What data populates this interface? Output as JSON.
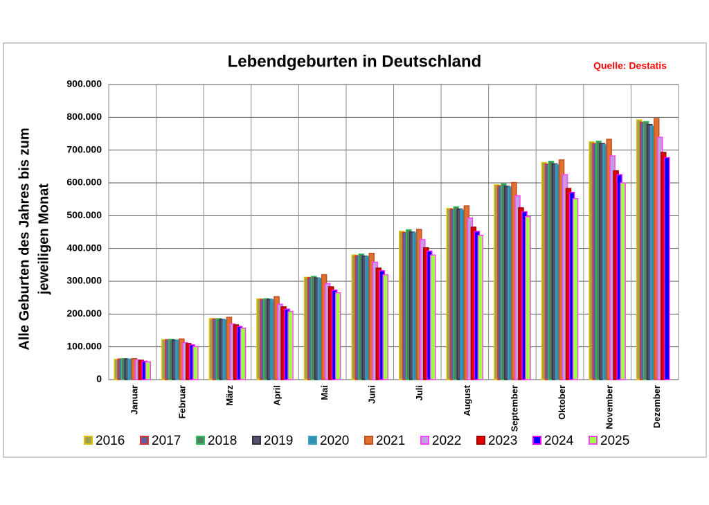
{
  "chart_data": {
    "type": "bar",
    "title": "Lebendgeburten in Deutschland",
    "source": "Quelle: Destatis",
    "ylabel": [
      "Alle Geburten des Jahres bis zum",
      "jeweiligen Monat"
    ],
    "categories": [
      "Januar",
      "Februar",
      "März",
      "April",
      "Mai",
      "Juni",
      "Juli",
      "August",
      "September",
      "Oktober",
      "November",
      "Dezember"
    ],
    "series": [
      {
        "name": "2016",
        "color": "#a0a050",
        "edgecolor": "#e0c000",
        "values": [
          62000,
          122000,
          186000,
          246000,
          312000,
          380000,
          452000,
          522000,
          594000,
          662000,
          725000,
          792000
        ]
      },
      {
        "name": "2017",
        "color": "#6060a0",
        "edgecolor": "#e03030",
        "values": [
          63000,
          122000,
          185000,
          245000,
          311000,
          378000,
          449000,
          520000,
          591000,
          657000,
          720000,
          785000
        ]
      },
      {
        "name": "2018",
        "color": "#508060",
        "edgecolor": "#30c060",
        "values": [
          64000,
          123000,
          186000,
          247000,
          315000,
          383000,
          457000,
          527000,
          597000,
          666000,
          727000,
          787000
        ]
      },
      {
        "name": "2019",
        "color": "#505070",
        "edgecolor": "#303040",
        "values": [
          63000,
          121000,
          184000,
          245000,
          310000,
          377000,
          450000,
          520000,
          590000,
          658000,
          720000,
          778000
        ]
      },
      {
        "name": "2020",
        "color": "#3090b0",
        "edgecolor": "#40a0c0",
        "values": [
          63000,
          121000,
          183000,
          244000,
          309000,
          376000,
          448000,
          518000,
          588000,
          656000,
          716000,
          773000
        ]
      },
      {
        "name": "2021",
        "color": "#e07030",
        "edgecolor": "#c05020",
        "values": [
          64000,
          124000,
          190000,
          253000,
          320000,
          385000,
          458000,
          530000,
          601000,
          670000,
          733000,
          796000
        ]
      },
      {
        "name": "2022",
        "color": "#c0a0e0",
        "edgecolor": "#ff40ff",
        "values": [
          60000,
          113000,
          170000,
          230000,
          293000,
          358000,
          427000,
          493000,
          561000,
          625000,
          682000,
          739000
        ]
      },
      {
        "name": "2023",
        "color": "#e00000",
        "edgecolor": "#a00000",
        "values": [
          59000,
          110000,
          167000,
          222000,
          283000,
          340000,
          402000,
          465000,
          524000,
          583000,
          637000,
          693000
        ]
      },
      {
        "name": "2024",
        "color": "#0000ff",
        "edgecolor": "#ff00ff",
        "values": [
          56000,
          106000,
          162000,
          215000,
          273000,
          332000,
          392000,
          452000,
          512000,
          571000,
          625000,
          677000
        ]
      },
      {
        "name": "2025",
        "color": "#a0ff40",
        "edgecolor": "#ff40ff",
        "values": [
          54000,
          101000,
          157000,
          208000,
          265000,
          320000,
          380000,
          440000,
          497000,
          552000,
          600000,
          null
        ]
      }
    ],
    "ylim": [
      0,
      900000
    ],
    "yticks": [
      0,
      {
        "value": 100000,
        "label": "100.000"
      },
      {
        "value": 200000,
        "label": "200.000"
      },
      {
        "value": 300000,
        "label": "300.000"
      },
      {
        "value": 400000,
        "label": "400.000"
      },
      {
        "value": 500000,
        "label": "500.000"
      },
      {
        "value": 600000,
        "label": "600.000"
      },
      {
        "value": 700000,
        "label": "700.000"
      },
      {
        "value": 800000,
        "label": "800.000"
      },
      {
        "value": 900000,
        "label": "900.000"
      }
    ],
    "grid": true
  }
}
